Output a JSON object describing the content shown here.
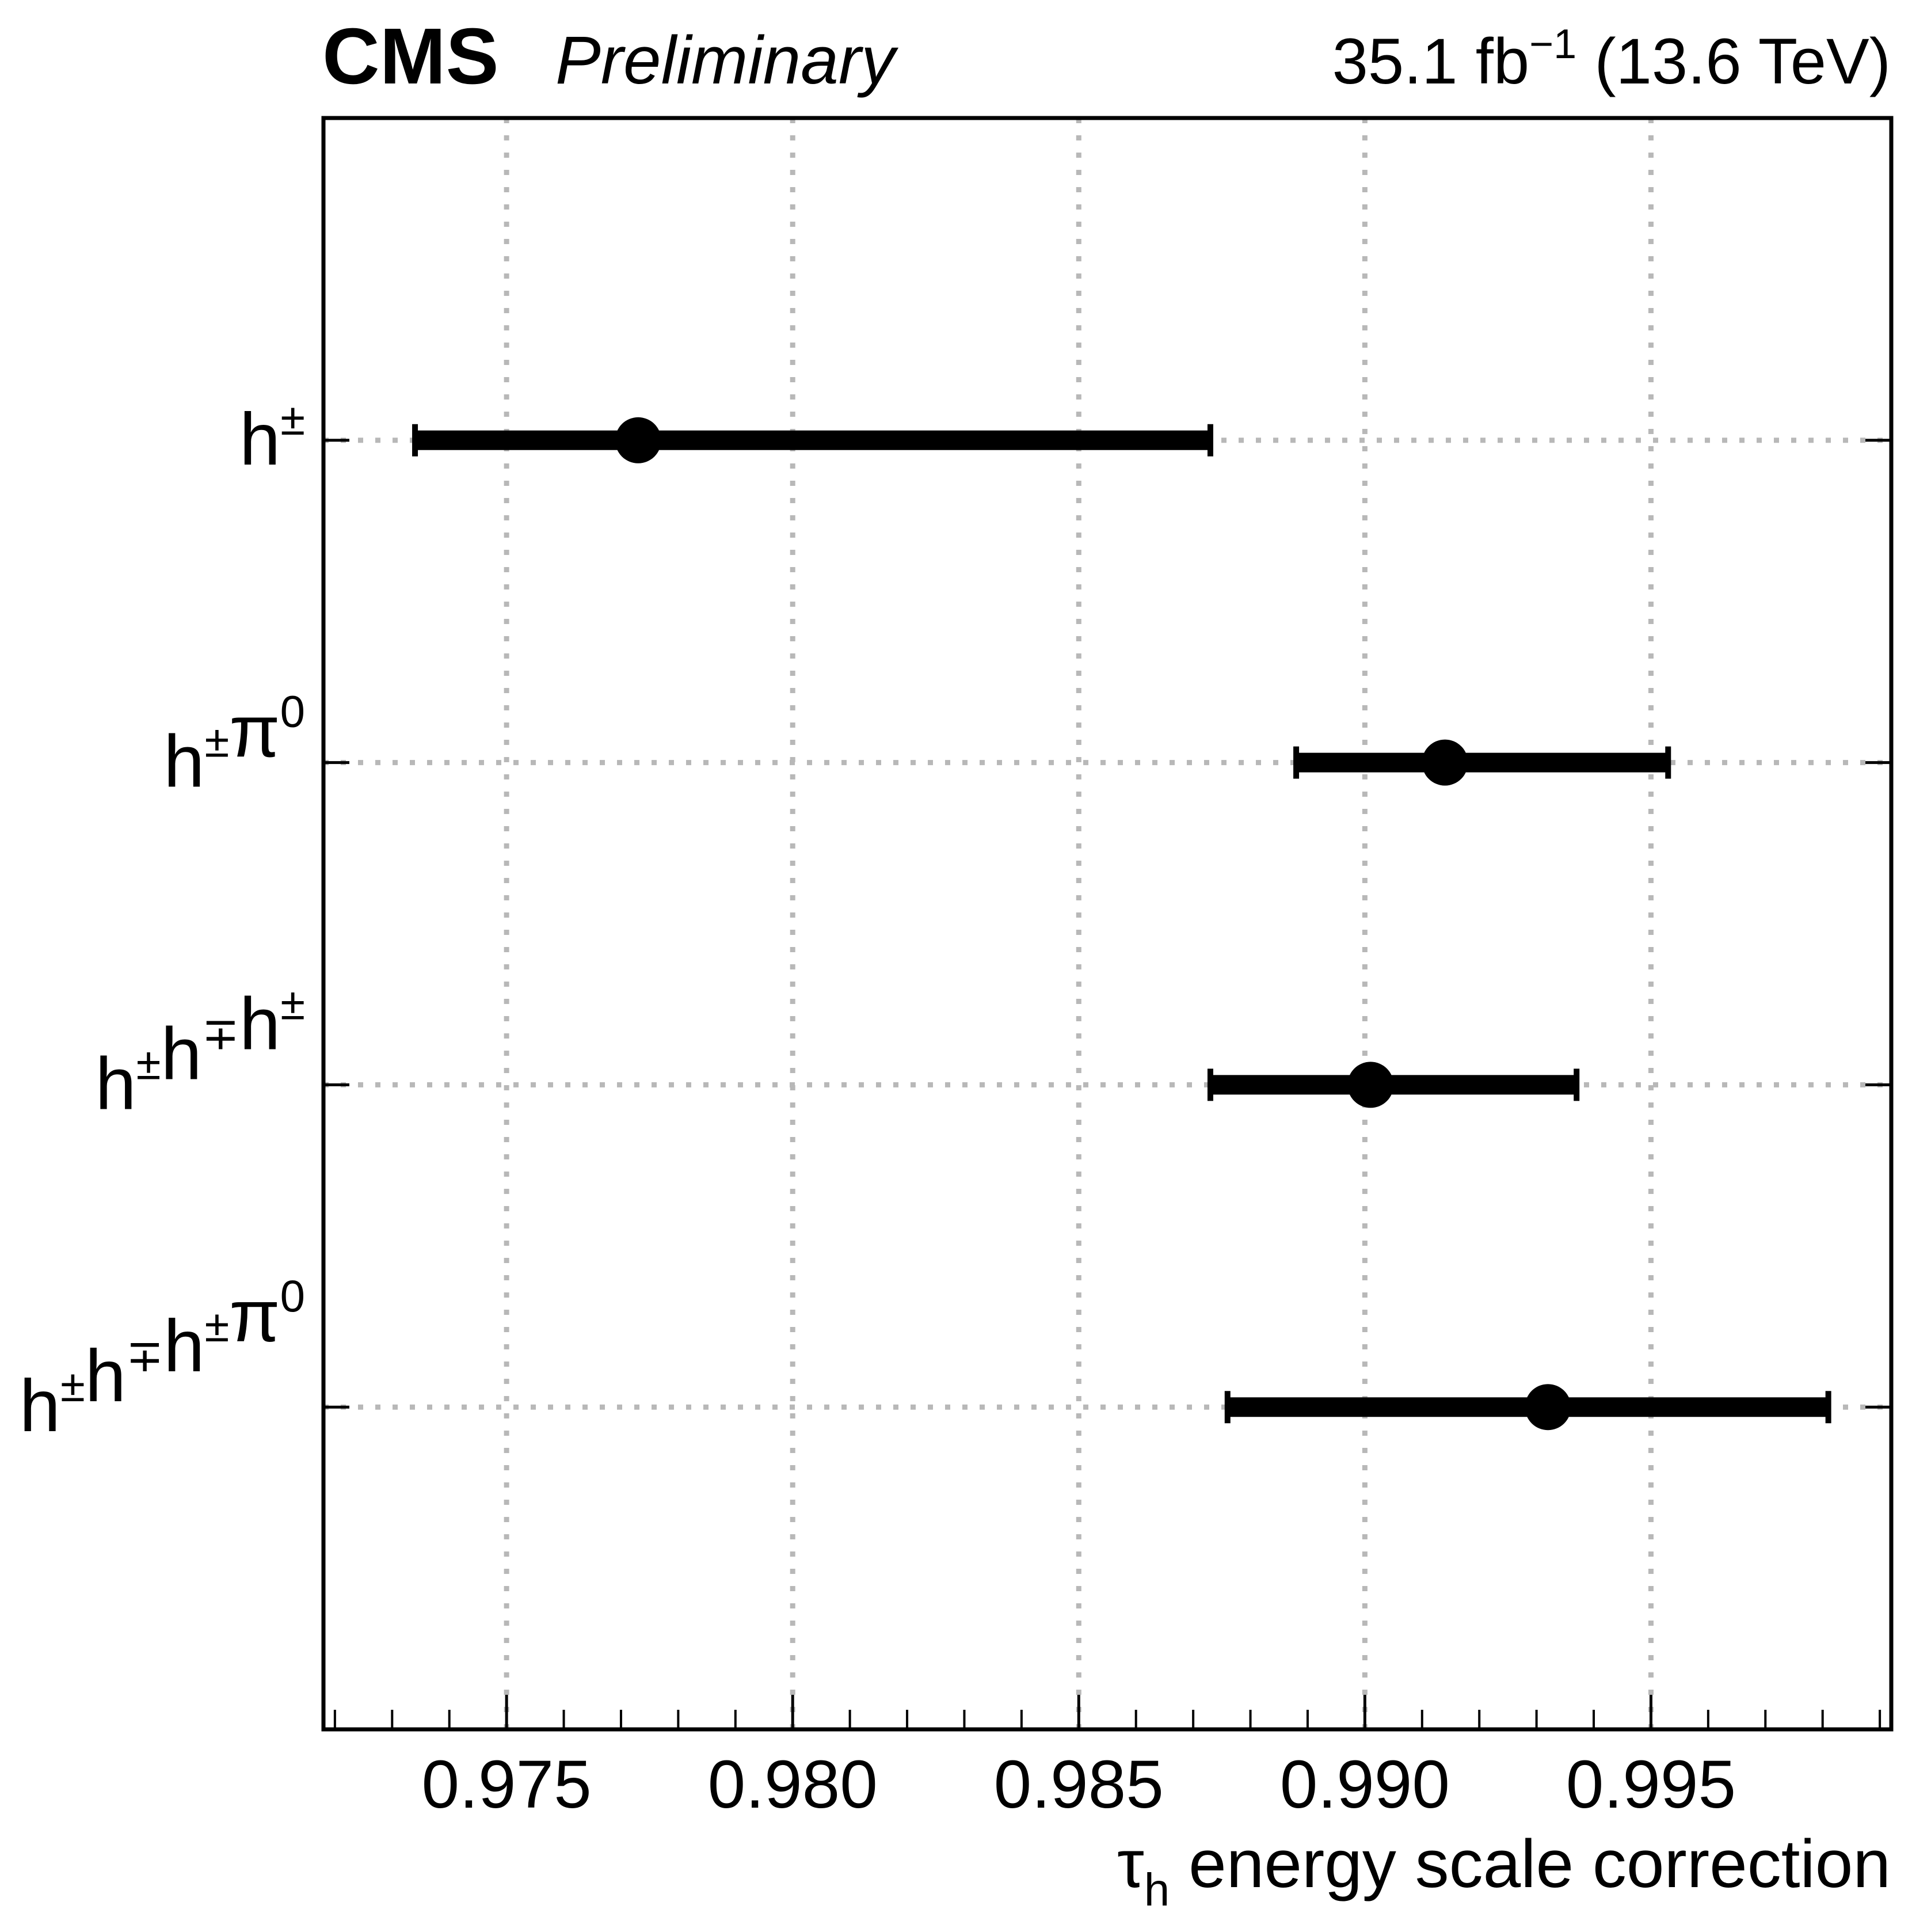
{
  "chart_data": {
    "type": "scatter",
    "orientation": "horizontal-errorbar",
    "header": {
      "experiment": "CMS",
      "status": "Preliminary",
      "lumi_value": "35.1 fb",
      "lumi_exponent": "−1",
      "energy": "(13.6 TeV)"
    },
    "xlabel": {
      "symbol": "τ",
      "subscript": "h",
      "text": "energy scale correction"
    },
    "xlim": [
      0.9718,
      0.9992
    ],
    "xticks": [
      {
        "value": 0.975,
        "label": "0.975"
      },
      {
        "value": 0.98,
        "label": "0.980"
      },
      {
        "value": 0.985,
        "label": "0.985"
      },
      {
        "value": 0.99,
        "label": "0.990"
      },
      {
        "value": 0.995,
        "label": "0.995"
      }
    ],
    "minor_tick_step": 0.001,
    "grid": true,
    "categories": [
      {
        "base": "h",
        "sup": "±"
      },
      {
        "base": "h",
        "sup": "±",
        "base2": "π",
        "sup2": "0"
      },
      {
        "base": "h",
        "sup": "±",
        "base2": "h",
        "sup2": "∓",
        "base3": "h",
        "sup3": "±"
      },
      {
        "base": "h",
        "sup": "±",
        "base2": "h",
        "sup2": "∓",
        "base3": "h",
        "sup3": "±",
        "base4": "π",
        "sup4": "0"
      }
    ],
    "points": [
      {
        "value": 0.9773,
        "low": 0.9734,
        "high": 0.9873
      },
      {
        "value": 0.9914,
        "low": 0.9888,
        "high": 0.9953
      },
      {
        "value": 0.9901,
        "low": 0.9873,
        "high": 0.9937
      },
      {
        "value": 0.9932,
        "low": 0.9876,
        "high": 0.9981
      }
    ],
    "marker_color": "#000000",
    "grid_color": "#b8b8b8"
  }
}
